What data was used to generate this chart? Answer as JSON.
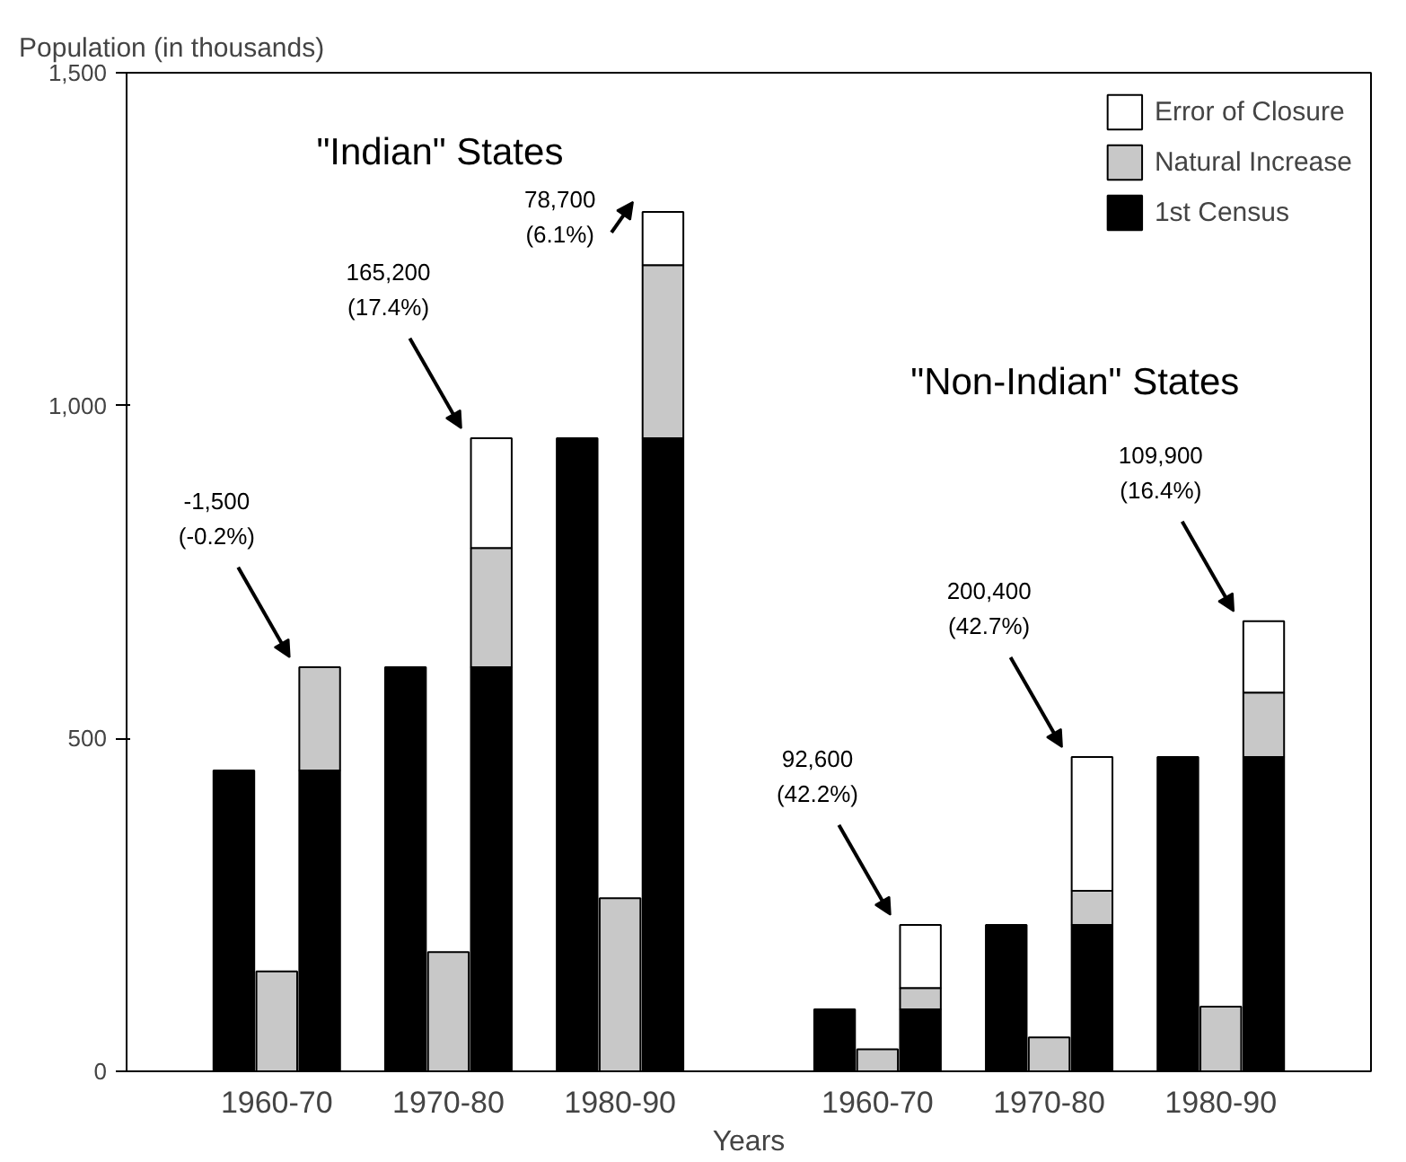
{
  "chart_data": {
    "type": "bar",
    "stacked": true,
    "ylabel": "Population (in thousands)",
    "xlabel": "Years",
    "categories": [
      null,
      "1960-70",
      null,
      null,
      null,
      "1970-80",
      null,
      null,
      null,
      "1980-90",
      null,
      null,
      null,
      null,
      null,
      "1960-70",
      null,
      null,
      null,
      "1970-80",
      null,
      null,
      null,
      "1980-90",
      null
    ],
    "series": [
      {
        "name": "1st Census",
        "color": "#000000",
        "values": [
          452,
          null,
          452,
          null,
          607,
          null,
          607,
          null,
          951,
          null,
          951,
          null,
          null,
          null,
          93,
          null,
          93,
          null,
          220,
          null,
          220,
          null,
          472,
          null,
          472
        ]
      },
      {
        "name": "Natural Increase",
        "color": "#c8c8c8",
        "values": [
          null,
          150,
          155,
          null,
          null,
          179,
          179,
          null,
          null,
          260,
          260,
          null,
          null,
          null,
          null,
          33,
          32,
          null,
          null,
          51,
          51,
          null,
          null,
          97,
          97
        ]
      },
      {
        "name": "Error of Closure",
        "color": "#ffffff",
        "values": [
          null,
          null,
          null,
          null,
          null,
          null,
          165,
          null,
          null,
          null,
          80,
          null,
          null,
          null,
          null,
          null,
          95,
          null,
          null,
          null,
          201,
          null,
          null,
          null,
          107
        ]
      }
    ],
    "ylim": [
      0,
      1500
    ],
    "yticks": [
      0,
      500,
      {
        "value": 1000,
        "label": "1,000"
      },
      {
        "value": 1500,
        "label": "1,500"
      }
    ],
    "legend": "top right",
    "grid": false,
    "annotations": [
      "\"Indian\" States",
      "\"Non-Indian\" States",
      "-1,500\n(-0.2%)",
      "165,200\n(17.4%)",
      "78,700\n(6.1%)",
      "92,600\n(42.2%)",
      "200,400\n(42.7%)",
      "109,900\n(16.4%)"
    ]
  }
}
